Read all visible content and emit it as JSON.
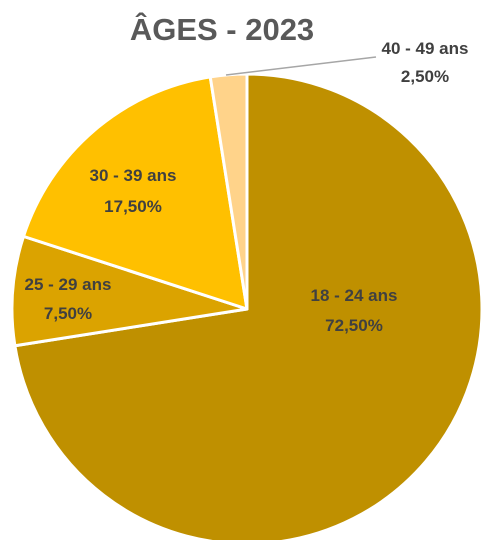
{
  "chart_data": {
    "type": "pie",
    "title": "ÂGES - 2023",
    "slices": [
      {
        "label": "18 - 24 ans",
        "value": 72.5,
        "display": "72,50%",
        "color": "#BF9000"
      },
      {
        "label": "25 - 29 ans",
        "value": 7.5,
        "display": "7,50%",
        "color": "#DBA300"
      },
      {
        "label": "30 - 39 ans",
        "value": 17.5,
        "display": "17,50%",
        "color": "#FFC000"
      },
      {
        "label": "40 - 49 ans",
        "value": 2.5,
        "display": "2,50%",
        "color": "#FFD38A"
      }
    ],
    "slice_border_color": "#FFFFFF",
    "leader_line_color": "#A6A6A6",
    "legend": "none"
  }
}
